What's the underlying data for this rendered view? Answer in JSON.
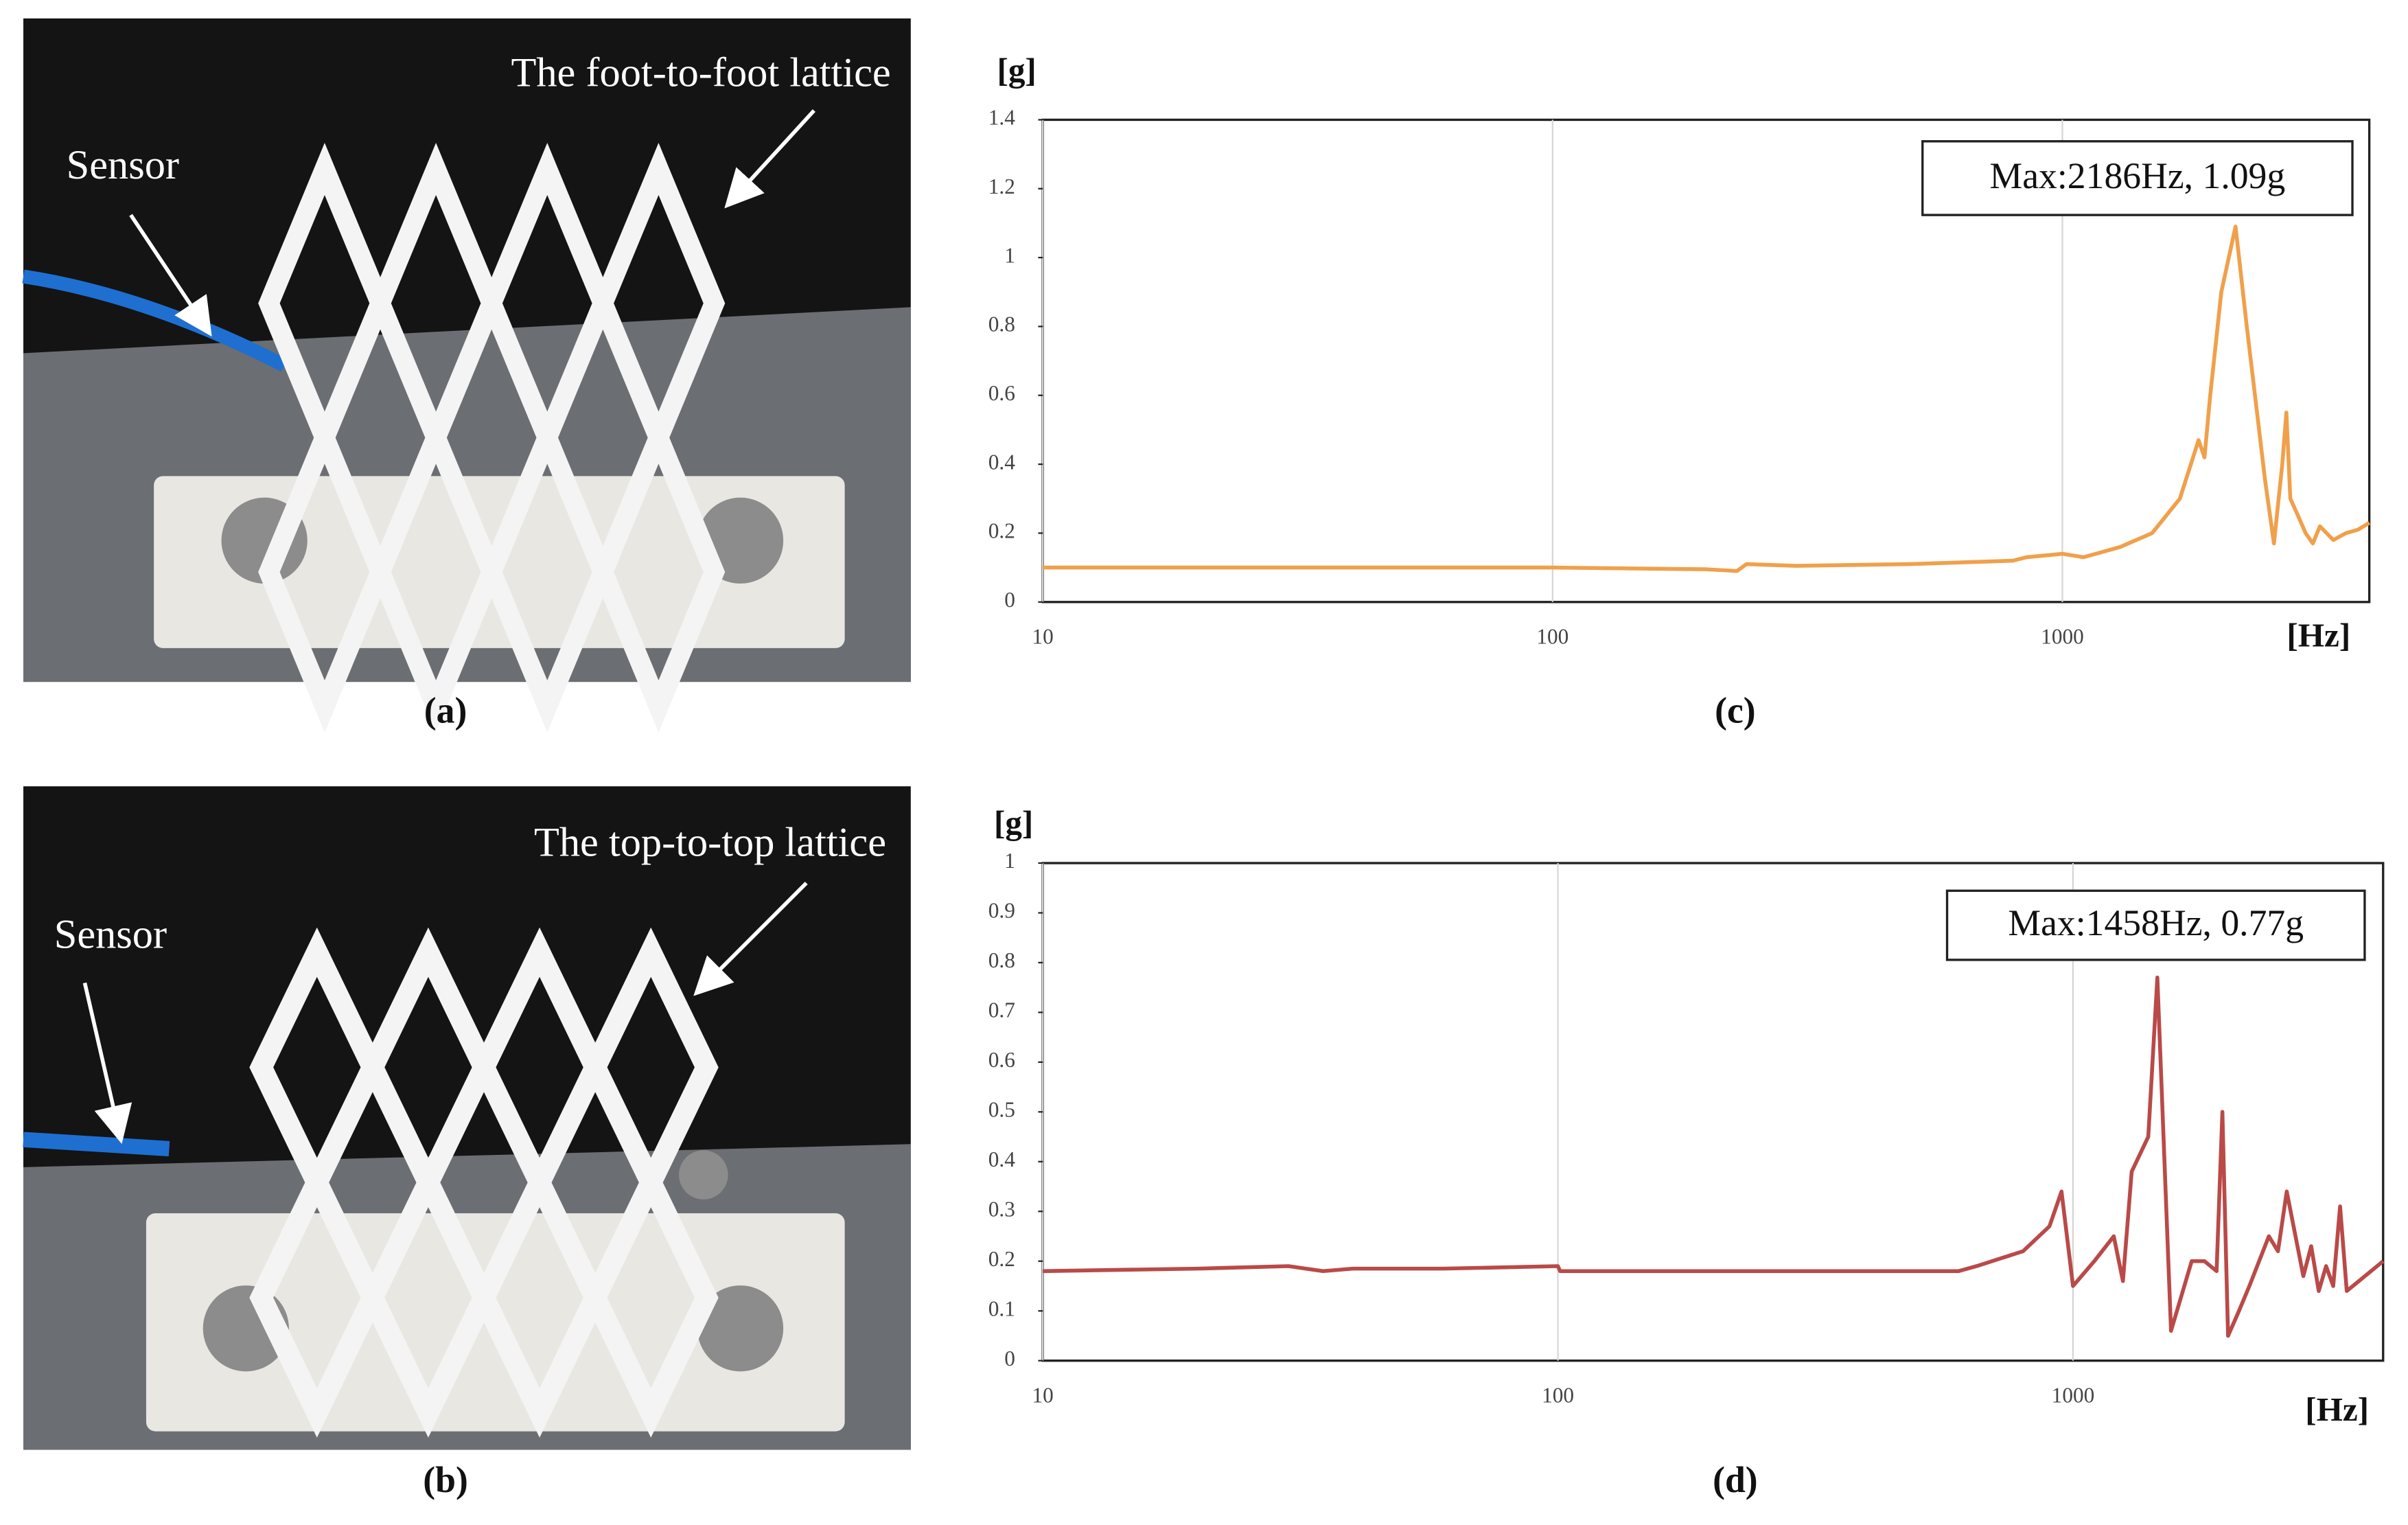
{
  "photos": [
    {
      "caption": "(a)",
      "labels": [
        "Sensor",
        "The foot-to-foot lattice"
      ]
    },
    {
      "caption": "(b)",
      "labels": [
        "Sensor",
        "The top-to-top lattice"
      ]
    }
  ],
  "chart_data": [
    {
      "type": "line",
      "caption": "(c)",
      "x_label": "[Hz]",
      "y_label": "[g]",
      "annotation": "Max:2186Hz, 1.09g",
      "x_scale": "log",
      "xlim": [
        10,
        4000
      ],
      "ylim": [
        0,
        1.4
      ],
      "xticks": [
        10,
        100,
        1000
      ],
      "yticks": [
        0,
        0.2,
        0.4,
        0.6,
        0.8,
        1,
        1.2,
        1.4
      ],
      "grid": true,
      "x": [
        10,
        50,
        100,
        200,
        230,
        240,
        300,
        500,
        800,
        850,
        1000,
        1100,
        1300,
        1500,
        1700,
        1850,
        1900,
        1950,
        2050,
        2186,
        2300,
        2500,
        2600,
        2700,
        2750,
        2800,
        2900,
        3000,
        3100,
        3200,
        3400,
        3600,
        3800,
        4000
      ],
      "series": [
        {
          "color": "#f0a04b",
          "values": [
            0.1,
            0.1,
            0.1,
            0.095,
            0.09,
            0.11,
            0.105,
            0.11,
            0.12,
            0.13,
            0.14,
            0.13,
            0.16,
            0.2,
            0.3,
            0.47,
            0.42,
            0.6,
            0.9,
            1.09,
            0.8,
            0.35,
            0.17,
            0.4,
            0.55,
            0.3,
            0.25,
            0.2,
            0.17,
            0.22,
            0.18,
            0.2,
            0.21,
            0.23
          ]
        }
      ]
    },
    {
      "type": "line",
      "caption": "(d)",
      "x_label": "[Hz]",
      "y_label": "[g]",
      "annotation": "Max:1458Hz, 0.77g",
      "x_scale": "log",
      "xlim": [
        10,
        4000
      ],
      "ylim": [
        0,
        1
      ],
      "xticks": [
        10,
        100,
        1000
      ],
      "yticks": [
        0,
        0.1,
        0.2,
        0.3,
        0.4,
        0.5,
        0.6,
        0.7,
        0.8,
        0.9,
        1
      ],
      "grid": true,
      "x": [
        10,
        20,
        30,
        35,
        40,
        60,
        100,
        101,
        300,
        600,
        650,
        800,
        900,
        950,
        1000,
        1100,
        1200,
        1250,
        1300,
        1400,
        1458,
        1550,
        1700,
        1800,
        1900,
        1950,
        2000,
        2100,
        2200,
        2400,
        2500,
        2600,
        2800,
        2900,
        3000,
        3100,
        3200,
        3300,
        3400,
        4000
      ],
      "series": [
        {
          "color": "#b94a48",
          "values": [
            0.18,
            0.185,
            0.19,
            0.18,
            0.185,
            0.185,
            0.19,
            0.18,
            0.18,
            0.18,
            0.19,
            0.22,
            0.27,
            0.34,
            0.15,
            0.2,
            0.25,
            0.16,
            0.38,
            0.45,
            0.77,
            0.06,
            0.2,
            0.2,
            0.18,
            0.5,
            0.05,
            0.1,
            0.15,
            0.25,
            0.22,
            0.34,
            0.17,
            0.23,
            0.14,
            0.19,
            0.15,
            0.31,
            0.14,
            0.2
          ]
        }
      ]
    }
  ]
}
